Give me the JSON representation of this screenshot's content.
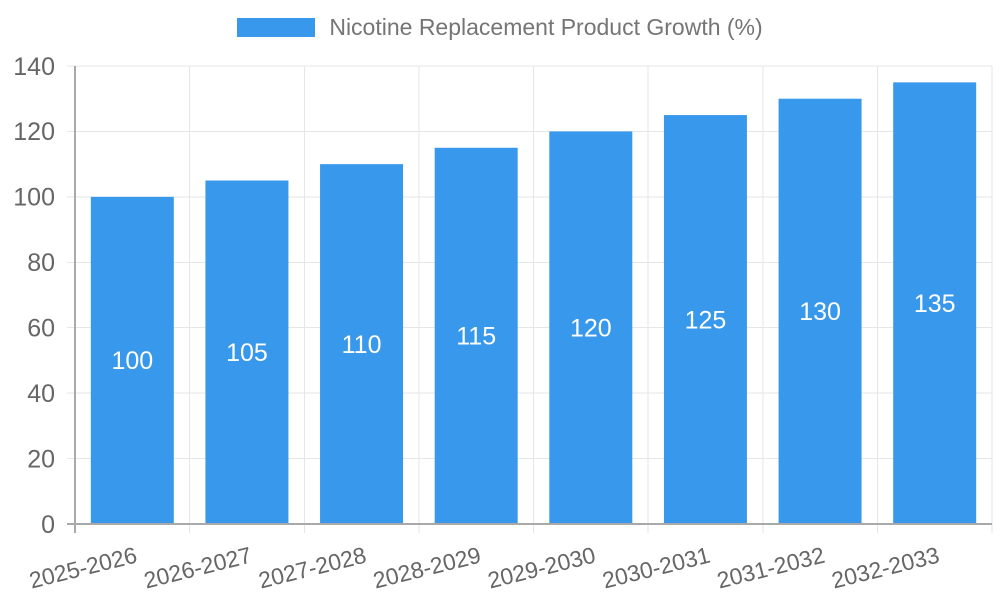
{
  "chart_data": {
    "type": "bar",
    "title": "Nicotine Replacement Product Growth (%)",
    "legend_label": "Nicotine Replacement Product Growth (%)",
    "legend_position": "top-center",
    "categories": [
      "2025-2026",
      "2026-2027",
      "2027-2028",
      "2028-2029",
      "2029-2030",
      "2030-2031",
      "2031-2032",
      "2032-2033"
    ],
    "series": [
      {
        "name": "Nicotine Replacement Product Growth (%)",
        "values": [
          100,
          105,
          110,
          115,
          120,
          125,
          130,
          135
        ]
      }
    ],
    "value_labels": [
      "100",
      "105",
      "110",
      "115",
      "120",
      "125",
      "130",
      "135"
    ],
    "value_labels_position": "inside-center",
    "xlabel": "",
    "ylabel": "",
    "ylim": [
      0,
      140
    ],
    "ytick_step": 20,
    "yticks": [
      0,
      20,
      40,
      60,
      80,
      100,
      120,
      140
    ],
    "grid": "both",
    "x_tick_label_rotation_deg": -14,
    "colors": {
      "bar": "#3898EC",
      "grid": "#E6E6E6",
      "axis_border": "#A9A9A9",
      "tick_label": "#666666",
      "legend_text": "#757575",
      "value_label": "#FFFFFF",
      "background": "#FFFFFF"
    }
  }
}
